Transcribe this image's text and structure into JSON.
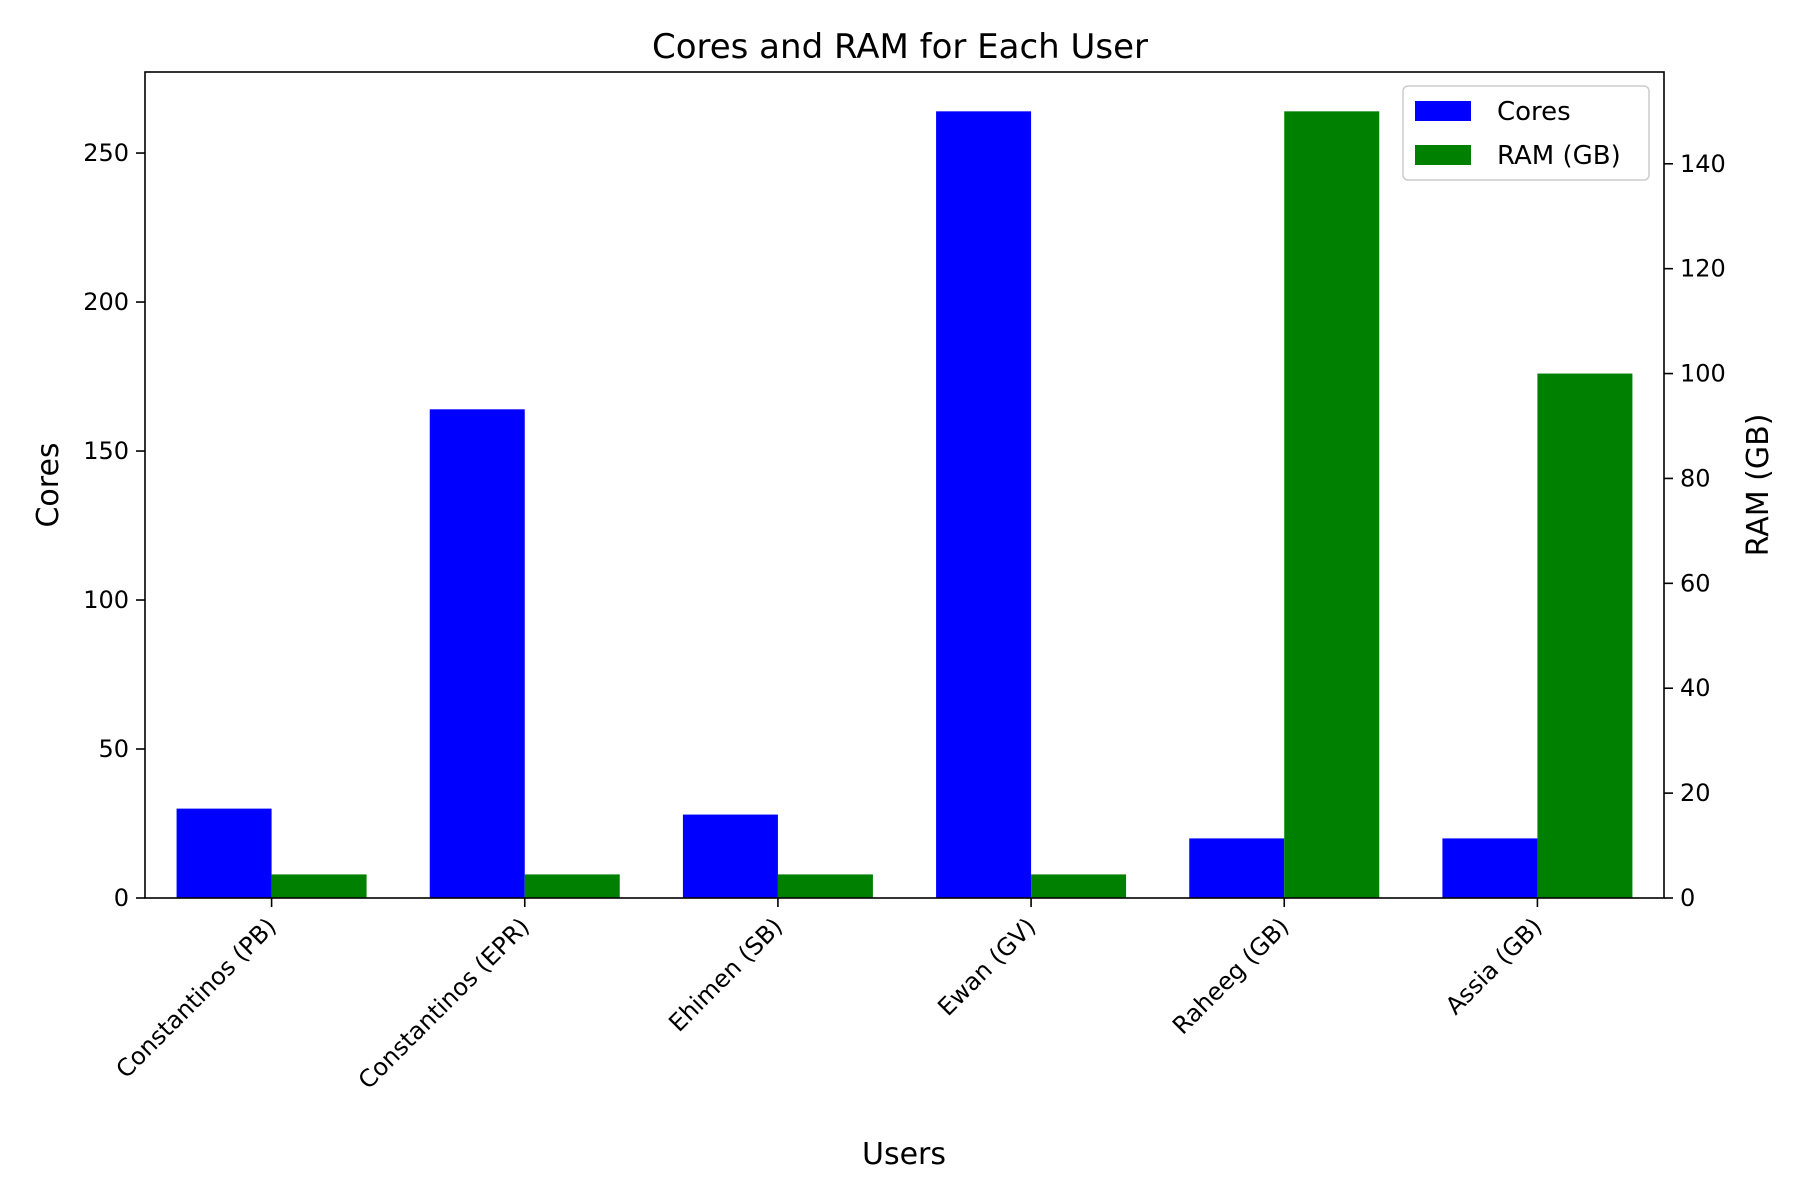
{
  "chart_data": {
    "type": "bar",
    "title": "Cores and RAM for Each User",
    "xlabel": "Users",
    "ylabel": "Cores",
    "y2label": "RAM (GB)",
    "categories": [
      "Constantinos (PB)",
      "Constantinos (EPR)",
      "Ehimen (SB)",
      "Ewan (GV)",
      "Raheeg (GB)",
      "Assia (GB)"
    ],
    "series": [
      {
        "name": "Cores",
        "axis": "left",
        "color": "#0000ff",
        "values": [
          30,
          164,
          28,
          264,
          20,
          20
        ]
      },
      {
        "name": "RAM (GB)",
        "axis": "right",
        "color": "#008000",
        "values": [
          4.5,
          4.5,
          4.5,
          4.5,
          150,
          100
        ]
      }
    ],
    "ylim": [
      0,
      277.2
    ],
    "y2lim": [
      0,
      157.5
    ],
    "yticks": [
      0,
      50,
      100,
      150,
      200,
      250
    ],
    "y2ticks": [
      0,
      20,
      40,
      60,
      80,
      100,
      120,
      140
    ],
    "legend_position": "top-right",
    "grid": false
  }
}
